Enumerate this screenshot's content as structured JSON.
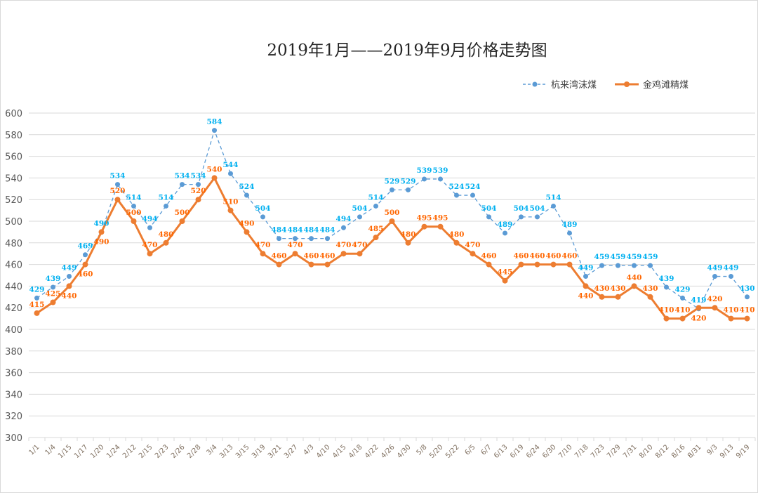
{
  "chart_data": {
    "type": "line",
    "title": "2019年1月——2019年9月价格走势图",
    "xlabel": "",
    "ylabel": "",
    "ylim": [
      300,
      600
    ],
    "yticks": [
      300,
      320,
      340,
      360,
      380,
      400,
      420,
      440,
      460,
      480,
      500,
      520,
      540,
      560,
      580,
      600
    ],
    "grid": true,
    "legend_position": "top-right",
    "categories": [
      "1/1",
      "1/4",
      "1/15",
      "1/17",
      "1/20",
      "1/24",
      "2/12",
      "2/15",
      "2/23",
      "2/26",
      "2/28",
      "3/4",
      "3/13",
      "3/15",
      "3/19",
      "3/21",
      "3/27",
      "4/3",
      "4/10",
      "4/15",
      "4/18",
      "4/22",
      "4/26",
      "4/30",
      "5/8",
      "5/20",
      "5/22",
      "6/5",
      "6/7",
      "6/13",
      "6/19",
      "6/24",
      "6/30",
      "7/10",
      "7/18",
      "7/23",
      "7/29",
      "7/31",
      "8/10",
      "8/12",
      "8/16",
      "8/31",
      "9/3",
      "9/13",
      "9/19"
    ],
    "series": [
      {
        "name": "杭来湾沫煤",
        "color": "#5b9bd5",
        "label_color": "#00b0f0",
        "style": "dashed",
        "values": [
          429,
          439,
          449,
          469,
          490,
          534,
          514,
          494,
          514,
          534,
          534,
          584,
          544,
          524,
          504,
          484,
          484,
          484,
          484,
          494,
          504,
          514,
          529,
          529,
          539,
          539,
          524,
          524,
          504,
          489,
          504,
          504,
          514,
          489,
          449,
          459,
          459,
          459,
          459,
          439,
          429,
          419,
          449,
          449,
          430
        ]
      },
      {
        "name": "金鸡滩精煤",
        "color": "#ed7d31",
        "label_color": "#ff6600",
        "style": "solid",
        "values": [
          415,
          425,
          440,
          460,
          490,
          520,
          500,
          470,
          480,
          500,
          520,
          540,
          510,
          490,
          470,
          460,
          470,
          460,
          460,
          470,
          470,
          485,
          500,
          480,
          495,
          495,
          480,
          470,
          460,
          445,
          460,
          460,
          460,
          460,
          440,
          430,
          430,
          440,
          430,
          410,
          410,
          420,
          420,
          410,
          410
        ]
      }
    ]
  }
}
